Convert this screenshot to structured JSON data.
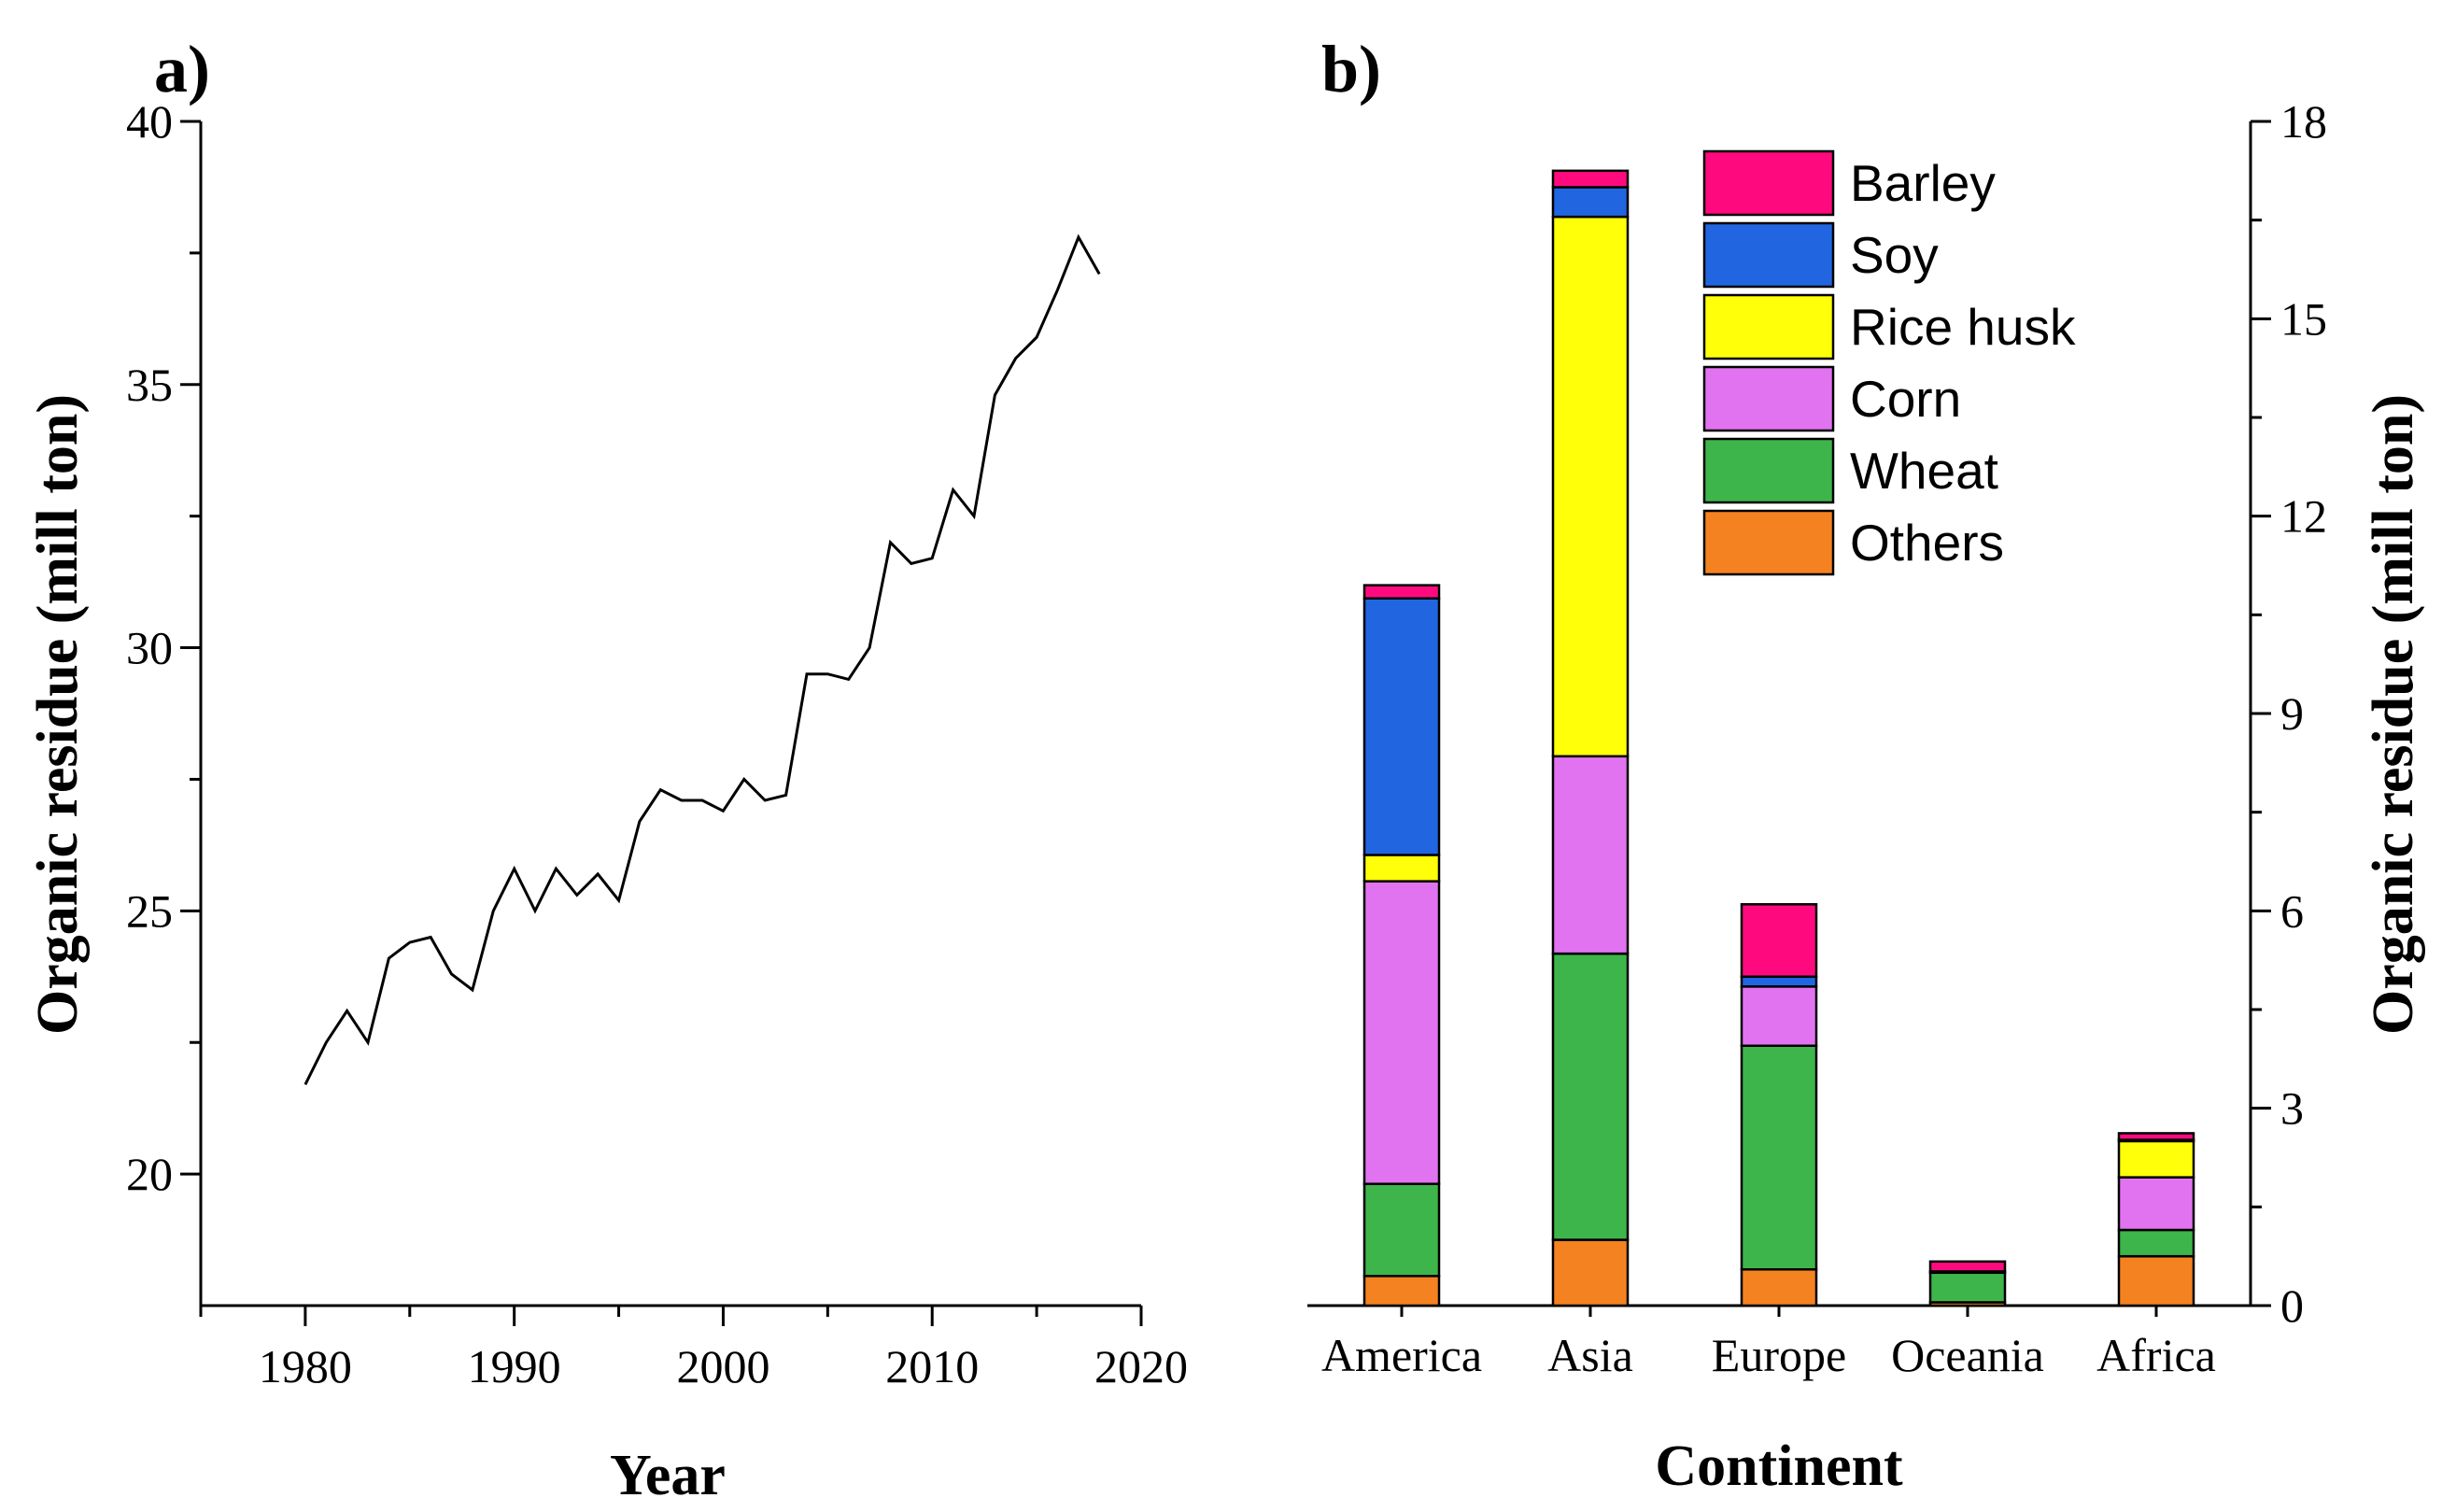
{
  "chart_data": [
    {
      "type": "line",
      "panel_label": "a)",
      "title": "",
      "xlabel": "Year",
      "ylabel": "Organic residue (mill ton)",
      "xlim": [
        1975,
        2020
      ],
      "ylim": [
        17.5,
        40
      ],
      "xticks": [
        "1980",
        "1990",
        "2000",
        "2010",
        "2020"
      ],
      "yticks": [
        "20",
        "25",
        "30",
        "35",
        "40"
      ],
      "series": [
        {
          "name": "Organic residue",
          "x": [
            1980,
            1981,
            1982,
            1983,
            1984,
            1985,
            1986,
            1987,
            1988,
            1989,
            1990,
            1991,
            1992,
            1993,
            1994,
            1995,
            1996,
            1997,
            1998,
            1999,
            2000,
            2001,
            2002,
            2003,
            2004,
            2005,
            2006,
            2007,
            2008,
            2009,
            2010,
            2011,
            2012,
            2013,
            2014,
            2015,
            2016,
            2017,
            2018
          ],
          "values": [
            21.7,
            22.5,
            23.1,
            22.5,
            24.1,
            24.4,
            24.5,
            23.8,
            23.5,
            25.0,
            25.8,
            25.0,
            25.8,
            25.3,
            25.7,
            25.2,
            26.7,
            27.3,
            27.1,
            27.1,
            26.9,
            27.5,
            27.1,
            27.2,
            29.5,
            29.5,
            29.4,
            30.0,
            32.0,
            31.6,
            31.7,
            33.0,
            32.5,
            34.8,
            35.5,
            35.9,
            36.8,
            37.8,
            37.1
          ]
        }
      ],
      "grid": false,
      "legend": "none"
    },
    {
      "type": "bar",
      "stacked": true,
      "panel_label": "b)",
      "title": "",
      "xlabel": "Continent",
      "ylabel": "Organic residue (mill ton)",
      "ylim": [
        0,
        18
      ],
      "yticks": [
        "0",
        "3",
        "6",
        "9",
        "12",
        "15",
        "18"
      ],
      "categories": [
        "America",
        "Asia",
        "Europe",
        "Oceania",
        "Africa"
      ],
      "series": [
        {
          "name": "Others",
          "color": "#F58220",
          "values": [
            0.45,
            1.0,
            0.55,
            0.05,
            0.75
          ]
        },
        {
          "name": "Wheat",
          "color": "#3DB54A",
          "values": [
            1.4,
            4.35,
            3.4,
            0.45,
            0.4
          ]
        },
        {
          "name": "Corn",
          "color": "#E173F0",
          "values": [
            4.6,
            3.0,
            0.9,
            0.0,
            0.8
          ]
        },
        {
          "name": "Rice husk",
          "color": "#FFFF0A",
          "values": [
            0.4,
            8.2,
            0.0,
            0.0,
            0.55
          ]
        },
        {
          "name": "Soy",
          "color": "#2166E0",
          "values": [
            3.9,
            0.45,
            0.15,
            0.02,
            0.02
          ]
        },
        {
          "name": "Barley",
          "color": "#FF0A7E",
          "values": [
            0.2,
            0.25,
            1.1,
            0.15,
            0.1
          ]
        }
      ],
      "legend_order": [
        "Barley",
        "Soy",
        "Rice husk",
        "Corn",
        "Wheat",
        "Others"
      ],
      "grid": false,
      "legend": "top-right"
    }
  ]
}
